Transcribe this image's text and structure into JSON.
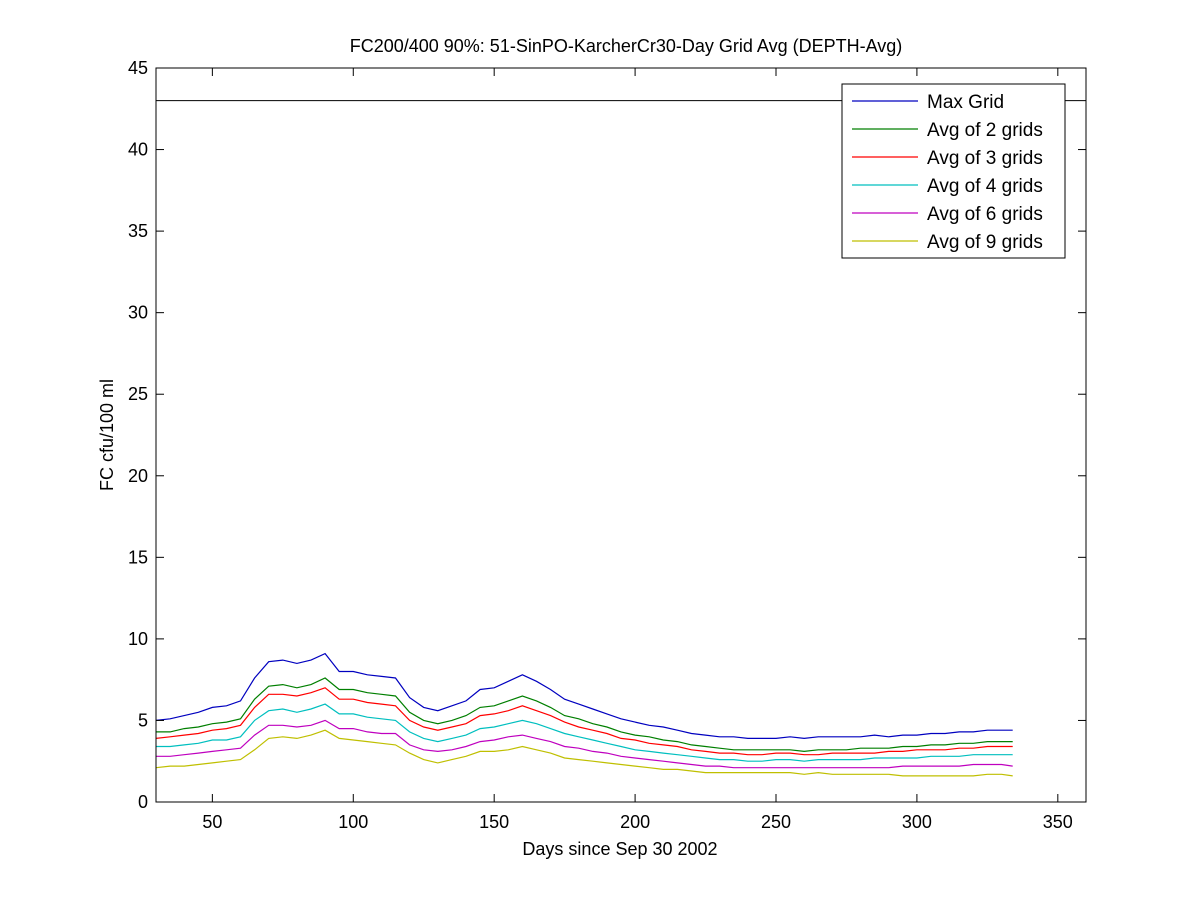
{
  "chart_data": {
    "type": "line",
    "title": "FC200/400 90%: 51-SinPO-KarcherCr30-Day Grid Avg (DEPTH-Avg)",
    "xlabel": "Days since Sep 30 2002",
    "ylabel": "FC cfu/100 ml",
    "xlim": [
      30,
      360
    ],
    "ylim": [
      0,
      45
    ],
    "xticks": [
      50,
      100,
      150,
      200,
      250,
      300,
      350
    ],
    "yticks": [
      0,
      5,
      10,
      15,
      20,
      25,
      30,
      35,
      40,
      45
    ],
    "grid": false,
    "legend_position": "top-right",
    "reference_line": {
      "y": 43,
      "color": "#000000"
    },
    "x": [
      30,
      35,
      40,
      45,
      50,
      55,
      60,
      65,
      70,
      75,
      80,
      85,
      90,
      95,
      100,
      105,
      110,
      115,
      120,
      125,
      130,
      135,
      140,
      145,
      150,
      155,
      160,
      165,
      170,
      175,
      180,
      185,
      190,
      195,
      200,
      205,
      210,
      215,
      220,
      225,
      230,
      235,
      240,
      245,
      250,
      255,
      260,
      265,
      270,
      275,
      280,
      285,
      290,
      295,
      300,
      305,
      310,
      315,
      320,
      325,
      330,
      334
    ],
    "series": [
      {
        "name": "Max Grid",
        "color": "#0000bf",
        "values": [
          5.0,
          5.1,
          5.3,
          5.5,
          5.8,
          5.9,
          6.2,
          7.6,
          8.6,
          8.7,
          8.5,
          8.7,
          9.1,
          8.0,
          8.0,
          7.8,
          7.7,
          7.6,
          6.4,
          5.8,
          5.6,
          5.9,
          6.2,
          6.9,
          7.0,
          7.4,
          7.8,
          7.4,
          6.9,
          6.3,
          6.0,
          5.7,
          5.4,
          5.1,
          4.9,
          4.7,
          4.6,
          4.4,
          4.2,
          4.1,
          4.0,
          4.0,
          3.9,
          3.9,
          3.9,
          4.0,
          3.9,
          4.0,
          4.0,
          4.0,
          4.0,
          4.1,
          4.0,
          4.1,
          4.1,
          4.2,
          4.2,
          4.3,
          4.3,
          4.4,
          4.4,
          4.4
        ]
      },
      {
        "name": "Avg of 2 grids",
        "color": "#007f00",
        "values": [
          4.3,
          4.3,
          4.5,
          4.6,
          4.8,
          4.9,
          5.1,
          6.3,
          7.1,
          7.2,
          7.0,
          7.2,
          7.6,
          6.9,
          6.9,
          6.7,
          6.6,
          6.5,
          5.5,
          5.0,
          4.8,
          5.0,
          5.3,
          5.8,
          5.9,
          6.2,
          6.5,
          6.2,
          5.8,
          5.3,
          5.1,
          4.8,
          4.6,
          4.3,
          4.1,
          4.0,
          3.8,
          3.7,
          3.5,
          3.4,
          3.3,
          3.2,
          3.2,
          3.2,
          3.2,
          3.2,
          3.1,
          3.2,
          3.2,
          3.2,
          3.3,
          3.3,
          3.3,
          3.4,
          3.4,
          3.5,
          3.5,
          3.6,
          3.6,
          3.7,
          3.7,
          3.7
        ]
      },
      {
        "name": "Avg of 3 grids",
        "color": "#ff0000",
        "values": [
          3.9,
          4.0,
          4.1,
          4.2,
          4.4,
          4.5,
          4.7,
          5.8,
          6.6,
          6.6,
          6.5,
          6.7,
          7.0,
          6.3,
          6.3,
          6.1,
          6.0,
          5.9,
          5.0,
          4.6,
          4.4,
          4.6,
          4.8,
          5.3,
          5.4,
          5.6,
          5.9,
          5.6,
          5.3,
          4.9,
          4.6,
          4.4,
          4.2,
          3.9,
          3.8,
          3.6,
          3.5,
          3.4,
          3.2,
          3.1,
          3.0,
          3.0,
          2.9,
          2.9,
          3.0,
          3.0,
          2.9,
          2.9,
          3.0,
          3.0,
          3.0,
          3.0,
          3.1,
          3.1,
          3.2,
          3.2,
          3.2,
          3.3,
          3.3,
          3.4,
          3.4,
          3.4
        ]
      },
      {
        "name": "Avg of 4 grids",
        "color": "#00bfbf",
        "values": [
          3.4,
          3.4,
          3.5,
          3.6,
          3.8,
          3.8,
          4.0,
          5.0,
          5.6,
          5.7,
          5.5,
          5.7,
          6.0,
          5.4,
          5.4,
          5.2,
          5.1,
          5.0,
          4.3,
          3.9,
          3.7,
          3.9,
          4.1,
          4.5,
          4.6,
          4.8,
          5.0,
          4.8,
          4.5,
          4.2,
          4.0,
          3.8,
          3.6,
          3.4,
          3.2,
          3.1,
          3.0,
          2.9,
          2.8,
          2.7,
          2.6,
          2.6,
          2.5,
          2.5,
          2.6,
          2.6,
          2.5,
          2.6,
          2.6,
          2.6,
          2.6,
          2.7,
          2.7,
          2.7,
          2.7,
          2.8,
          2.8,
          2.8,
          2.9,
          2.9,
          2.9,
          2.9
        ]
      },
      {
        "name": "Avg of 6 grids",
        "color": "#bf00bf",
        "values": [
          2.8,
          2.8,
          2.9,
          3.0,
          3.1,
          3.2,
          3.3,
          4.1,
          4.7,
          4.7,
          4.6,
          4.7,
          5.0,
          4.5,
          4.5,
          4.3,
          4.2,
          4.2,
          3.5,
          3.2,
          3.1,
          3.2,
          3.4,
          3.7,
          3.8,
          4.0,
          4.1,
          3.9,
          3.7,
          3.4,
          3.3,
          3.1,
          3.0,
          2.8,
          2.7,
          2.6,
          2.5,
          2.4,
          2.3,
          2.2,
          2.2,
          2.1,
          2.1,
          2.1,
          2.1,
          2.1,
          2.1,
          2.1,
          2.1,
          2.1,
          2.1,
          2.1,
          2.1,
          2.2,
          2.2,
          2.2,
          2.2,
          2.2,
          2.3,
          2.3,
          2.3,
          2.2
        ]
      },
      {
        "name": "Avg of 9 grids",
        "color": "#bfbf00",
        "values": [
          2.1,
          2.2,
          2.2,
          2.3,
          2.4,
          2.5,
          2.6,
          3.2,
          3.9,
          4.0,
          3.9,
          4.1,
          4.4,
          3.9,
          3.8,
          3.7,
          3.6,
          3.5,
          3.0,
          2.6,
          2.4,
          2.6,
          2.8,
          3.1,
          3.1,
          3.2,
          3.4,
          3.2,
          3.0,
          2.7,
          2.6,
          2.5,
          2.4,
          2.3,
          2.2,
          2.1,
          2.0,
          2.0,
          1.9,
          1.8,
          1.8,
          1.8,
          1.8,
          1.8,
          1.8,
          1.8,
          1.7,
          1.8,
          1.7,
          1.7,
          1.7,
          1.7,
          1.7,
          1.6,
          1.6,
          1.6,
          1.6,
          1.6,
          1.6,
          1.7,
          1.7,
          1.6
        ]
      }
    ]
  }
}
